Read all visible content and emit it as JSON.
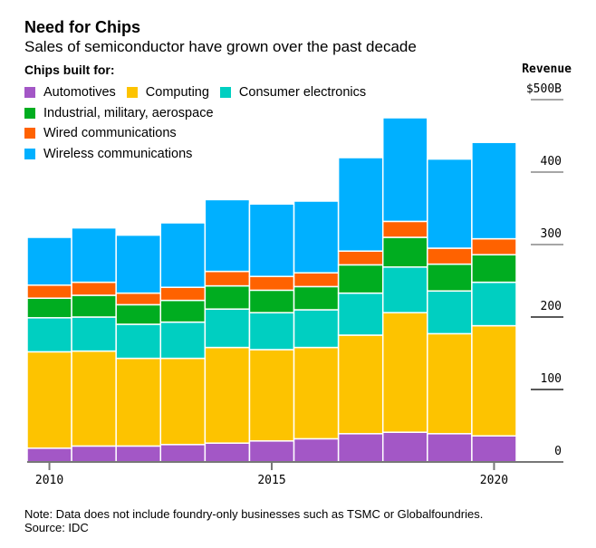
{
  "chart_data": {
    "type": "bar",
    "stacked": true,
    "title": "Need for Chips",
    "subtitle": "Sales of semiconductor have grown over the past decade",
    "legend_title": "Chips built for:",
    "ylabel": "Revenue",
    "ylim": [
      0,
      500
    ],
    "y_ticks": [
      "0",
      "100",
      "200",
      "300",
      "400",
      "$500B"
    ],
    "y_tick_values": [
      0,
      100,
      200,
      300,
      400,
      500
    ],
    "x_ticks": [
      "2010",
      "2015",
      "2020"
    ],
    "x_tick_values": [
      2010,
      2015,
      2020
    ],
    "legend_position": "top-left",
    "categories": [
      2010,
      2011,
      2012,
      2013,
      2014,
      2015,
      2016,
      2017,
      2018,
      2019,
      2020
    ],
    "series": [
      {
        "name": "Automotives",
        "color": "#a357c6",
        "values": [
          19,
          22,
          22,
          24,
          26,
          29,
          32,
          39,
          41,
          39,
          36
        ]
      },
      {
        "name": "Computing",
        "color": "#fdc300",
        "values": [
          133,
          131,
          121,
          119,
          132,
          126,
          126,
          136,
          165,
          138,
          152
        ]
      },
      {
        "name": "Consumer electronics",
        "color": "#00cfc1",
        "values": [
          47,
          47,
          47,
          50,
          53,
          51,
          52,
          58,
          63,
          59,
          60
        ]
      },
      {
        "name": "Industrial, military, aerospace",
        "color": "#00ad20",
        "values": [
          27,
          30,
          27,
          30,
          32,
          31,
          32,
          39,
          41,
          37,
          38
        ]
      },
      {
        "name": "Wired communications",
        "color": "#ff6200",
        "values": [
          18,
          18,
          16,
          18,
          20,
          19,
          19,
          19,
          22,
          22,
          22
        ]
      },
      {
        "name": "Wireless communications",
        "color": "#00b0ff",
        "values": [
          66,
          75,
          80,
          89,
          99,
          100,
          99,
          129,
          143,
          123,
          133
        ]
      }
    ]
  },
  "note": "Note: Data does not include foundry-only businesses such as TSMC or Globalfoundries.",
  "source": "Source: IDC"
}
